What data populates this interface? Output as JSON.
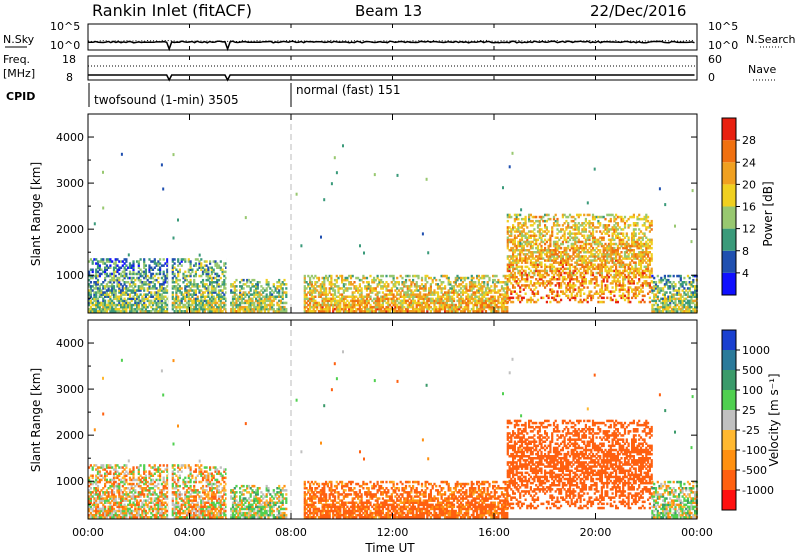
{
  "header": {
    "station": "Rankin Inlet (fitACF)",
    "beam": "Beam 13",
    "date": "22/Dec/2016"
  },
  "noise_panel": {
    "left_label": "N.Sky",
    "right_label": "N.Search",
    "left_ticks": [
      "10^5",
      "10^0"
    ],
    "right_ticks": [
      "10^5",
      "10^0"
    ]
  },
  "freq_panel": {
    "left_label_1": "Freq.",
    "left_label_2": "[MHz]",
    "right_label": "Nave",
    "left_ticks": [
      "18",
      "8"
    ],
    "right_ticks": [
      "60",
      "0"
    ]
  },
  "cpid": {
    "label": "CPID",
    "modes": [
      {
        "text": "twofsound (1-min) 3505",
        "start_hour": 0
      },
      {
        "text": "normal (fast) 151",
        "start_hour": 8
      }
    ]
  },
  "power_panel": {
    "ylabel": "Slant Range [km]",
    "yticks": [
      "4000",
      "3000",
      "2000",
      "1000"
    ],
    "colorbar_label": "Power [dB]",
    "colorbar_ticks": [
      "28",
      "24",
      "20",
      "16",
      "12",
      "8",
      "4"
    ],
    "colors": [
      "#1010ff",
      "#2050b0",
      "#3a9a7a",
      "#98c870",
      "#f0d020",
      "#f0a020",
      "#f07010",
      "#e82010"
    ]
  },
  "velocity_panel": {
    "ylabel": "Slant Range [km]",
    "yticks": [
      "4000",
      "3000",
      "2000",
      "1000"
    ],
    "colorbar_label": "Velocity [m s⁻¹]",
    "colorbar_ticks": [
      "1000",
      "500",
      "100",
      "25",
      "-25",
      "-100",
      "-500",
      "-1000"
    ],
    "colors": [
      "#ff1010",
      "#ff6010",
      "#ff9010",
      "#ffb830",
      "#c0c0c0",
      "#50d050",
      "#3a9a6a",
      "#2a7a9a",
      "#1a40d0"
    ]
  },
  "x_axis": {
    "label": "Time UT",
    "ticks": [
      "00:00",
      "04:00",
      "08:00",
      "12:00",
      "16:00",
      "20:00",
      "00:00"
    ]
  },
  "chart_data": {
    "type": "heatmap",
    "x_range_hours": [
      0,
      24
    ],
    "y_range_km": [
      180,
      4500
    ],
    "mode_change_hour": 8,
    "data_gaps_hours": [
      3.2,
      5.5
    ],
    "scatter_regions": [
      {
        "t": [
          0,
          3.2
        ],
        "r": [
          200,
          1350
        ],
        "power_dB": 14,
        "velocity": -40
      },
      {
        "t": [
          3.3,
          5.5
        ],
        "r": [
          200,
          1350
        ],
        "power_dB": 16,
        "velocity": -40
      },
      {
        "t": [
          5.6,
          7.8
        ],
        "r": [
          200,
          900
        ],
        "power_dB": 18,
        "velocity": 20
      },
      {
        "t": [
          8.5,
          16.5
        ],
        "r": [
          200,
          1000
        ],
        "power_dB": 22,
        "velocity": -150
      },
      {
        "t": [
          16.5,
          22.2
        ],
        "r": [
          400,
          2300
        ],
        "power_dB": 24,
        "velocity": -250
      },
      {
        "t": [
          22.2,
          24
        ],
        "r": [
          200,
          1000
        ],
        "power_dB": 16,
        "velocity": 20
      }
    ]
  }
}
